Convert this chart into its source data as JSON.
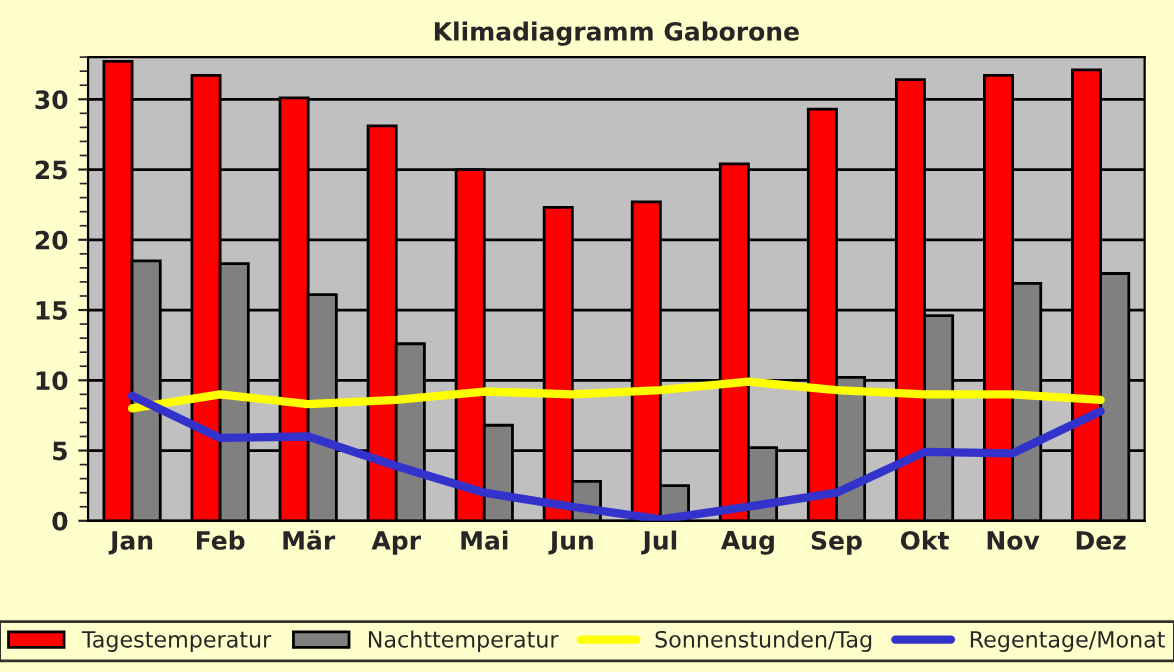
{
  "chart_data": {
    "type": "bar",
    "title": "Klimadiagramm Gaborone",
    "categories": [
      "Jan",
      "Feb",
      "Mär",
      "Apr",
      "Mai",
      "Jun",
      "Jul",
      "Aug",
      "Sep",
      "Okt",
      "Nov",
      "Dez"
    ],
    "series": [
      {
        "name": "Tagestemperatur",
        "color": "#ff0000",
        "values": [
          32.7,
          31.7,
          30.1,
          28.1,
          25.0,
          22.3,
          22.7,
          25.4,
          29.3,
          31.4,
          31.7,
          32.1
        ]
      },
      {
        "name": "Nachttemperatur",
        "color": "#808080",
        "values": [
          18.5,
          18.3,
          16.1,
          12.6,
          6.8,
          2.8,
          2.5,
          5.2,
          10.2,
          14.6,
          16.9,
          17.6
        ]
      },
      {
        "name": "Sonnenstunden/Tag",
        "type": "line",
        "color": "#ffff00",
        "values": [
          8.0,
          9.0,
          8.3,
          8.6,
          9.2,
          9.0,
          9.3,
          9.9,
          9.3,
          9.0,
          9.0,
          8.6
        ]
      },
      {
        "name": "Regentage/Monat",
        "type": "line",
        "color": "#3333cc",
        "values": [
          8.9,
          5.9,
          6.0,
          3.9,
          2.0,
          1.0,
          0.1,
          1.0,
          2.0,
          4.9,
          4.8,
          7.8
        ]
      }
    ],
    "ylim": [
      0,
      33
    ],
    "yticks": [
      0,
      5,
      10,
      15,
      20,
      25,
      30
    ],
    "grid": "y",
    "legend": "bottom"
  }
}
